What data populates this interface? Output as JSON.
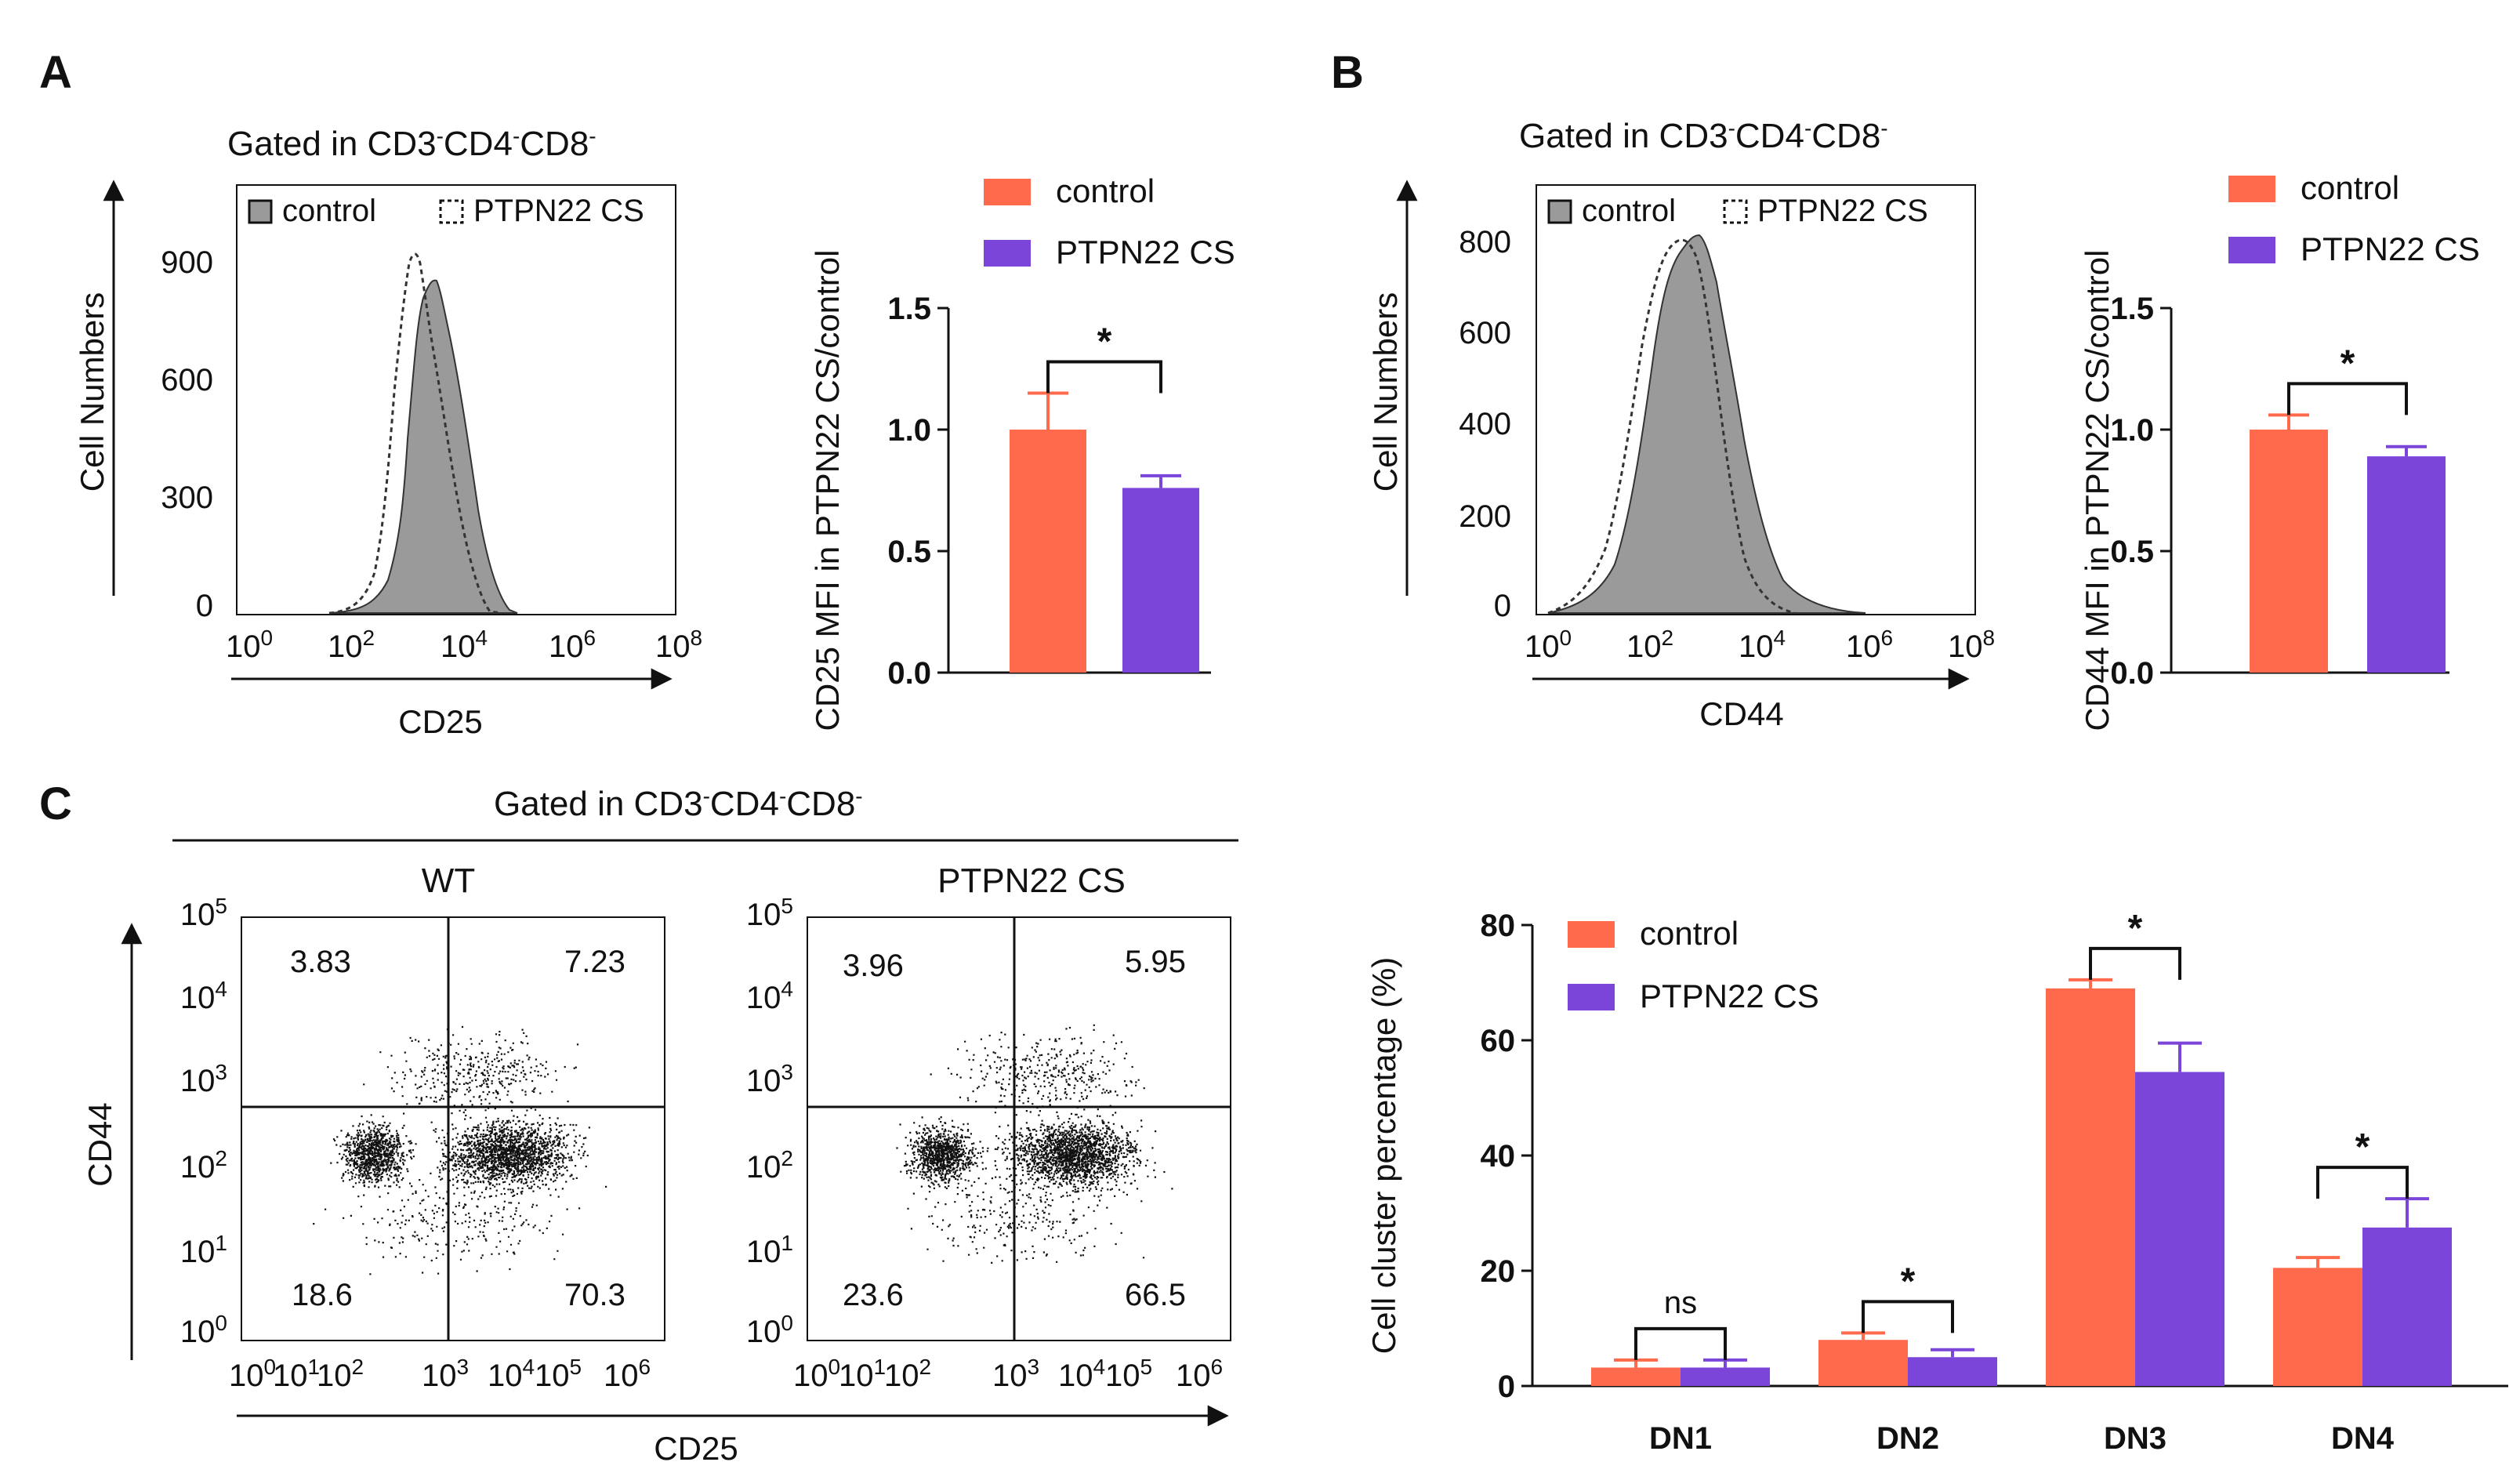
{
  "colors": {
    "control": "#FF6A4D",
    "ptpn22": "#7B45D9",
    "hist_fill": "#9a9a9a",
    "axis": "#111111"
  },
  "panelA": {
    "label": "A",
    "histogram": {
      "title_base": "Gated in CD3",
      "title_mid1": "CD4",
      "title_mid2": "CD8",
      "title_sup": "-",
      "legend_control": "control",
      "legend_cs": "PTPN22 CS",
      "ylabel": "Cell Numbers",
      "xlabel": "CD25",
      "yticks": [
        "0",
        "300",
        "600",
        "900"
      ],
      "xticks": [
        {
          "base": "10",
          "exp": "0"
        },
        {
          "base": "10",
          "exp": "2"
        },
        {
          "base": "10",
          "exp": "4"
        },
        {
          "base": "10",
          "exp": "6"
        },
        {
          "base": "10",
          "exp": "8"
        }
      ]
    }
  },
  "panelB": {
    "label": "B",
    "histogram": {
      "title_base": "Gated in CD3",
      "title_mid1": "CD4",
      "title_mid2": "CD8",
      "title_sup": "-",
      "legend_control": "control",
      "legend_cs": "PTPN22 CS",
      "ylabel": "Cell Numbers",
      "xlabel": "CD44",
      "yticks": [
        "0",
        "200",
        "400",
        "600",
        "800"
      ],
      "xticks": [
        {
          "base": "10",
          "exp": "0"
        },
        {
          "base": "10",
          "exp": "2"
        },
        {
          "base": "10",
          "exp": "4"
        },
        {
          "base": "10",
          "exp": "6"
        },
        {
          "base": "10",
          "exp": "8"
        }
      ]
    }
  },
  "panelC": {
    "label": "C",
    "title_base": "Gated in CD3",
    "title_mid1": "CD4",
    "title_mid2": "CD8",
    "title_sup": "-",
    "ylabel": "CD44",
    "xlabel": "CD25",
    "plots": [
      {
        "name": "WT",
        "quadrants": {
          "ul": "3.83",
          "ur": "7.23",
          "ll": "18.6",
          "lr": "70.3"
        }
      },
      {
        "name": "PTPN22 CS",
        "quadrants": {
          "ul": "3.96",
          "ur": "5.95",
          "ll": "23.6",
          "lr": "66.5"
        }
      }
    ],
    "yticks": [
      {
        "base": "10",
        "exp": "0"
      },
      {
        "base": "10",
        "exp": "1"
      },
      {
        "base": "10",
        "exp": "2"
      },
      {
        "base": "10",
        "exp": "3"
      },
      {
        "base": "10",
        "exp": "4"
      },
      {
        "base": "10",
        "exp": "5"
      }
    ],
    "xticks": [
      {
        "base": "10",
        "exp": "0"
      },
      {
        "base": "10",
        "exp": "1"
      },
      {
        "base": "10",
        "exp": "2"
      },
      {
        "base": "10",
        "exp": "3"
      },
      {
        "base": "10",
        "exp": "4"
      },
      {
        "base": "10",
        "exp": "5"
      },
      {
        "base": "10",
        "exp": "6"
      }
    ]
  },
  "chart_data": [
    {
      "type": "bar",
      "id": "A-bar",
      "title": "",
      "ylabel": "CD25 MFI in PTPN22 CS/control",
      "xlabel": "",
      "ylim": [
        0,
        1.5
      ],
      "yticks": [
        "0.0",
        "0.5",
        "1.0",
        "1.5"
      ],
      "series": [
        {
          "name": "control",
          "values": [
            1.0
          ],
          "errors": [
            0.15
          ]
        },
        {
          "name": "PTPN22 CS",
          "values": [
            0.76
          ],
          "errors": [
            0.05
          ]
        }
      ],
      "significance": [
        {
          "label": "*"
        }
      ]
    },
    {
      "type": "bar",
      "id": "B-bar",
      "title": "",
      "ylabel": "CD44 MFI in PTPN22 CS/control",
      "xlabel": "",
      "ylim": [
        0,
        1.5
      ],
      "yticks": [
        "0.0",
        "0.5",
        "1.0",
        "1.5"
      ],
      "series": [
        {
          "name": "control",
          "values": [
            1.0
          ],
          "errors": [
            0.06
          ]
        },
        {
          "name": "PTPN22 CS",
          "values": [
            0.89
          ],
          "errors": [
            0.04
          ]
        }
      ],
      "significance": [
        {
          "label": "*"
        }
      ]
    },
    {
      "type": "bar",
      "id": "C-bar",
      "title": "",
      "ylabel": "Cell cluster percentage (%)",
      "xlabel": "",
      "ylim": [
        0,
        80
      ],
      "yticks": [
        "0",
        "20",
        "40",
        "60",
        "80"
      ],
      "categories": [
        "DN1",
        "DN2",
        "DN3",
        "DN4"
      ],
      "series": [
        {
          "name": "control",
          "values": [
            3.2,
            8.0,
            69.0,
            20.5
          ],
          "errors": [
            1.3,
            1.2,
            1.5,
            1.8
          ]
        },
        {
          "name": "PTPN22 CS",
          "values": [
            3.2,
            5.0,
            54.5,
            27.5
          ],
          "errors": [
            1.3,
            1.3,
            5.0,
            5.0
          ]
        }
      ],
      "significance": [
        {
          "label": "ns"
        },
        {
          "label": "*"
        },
        {
          "label": "*"
        },
        {
          "label": "*"
        }
      ]
    }
  ]
}
